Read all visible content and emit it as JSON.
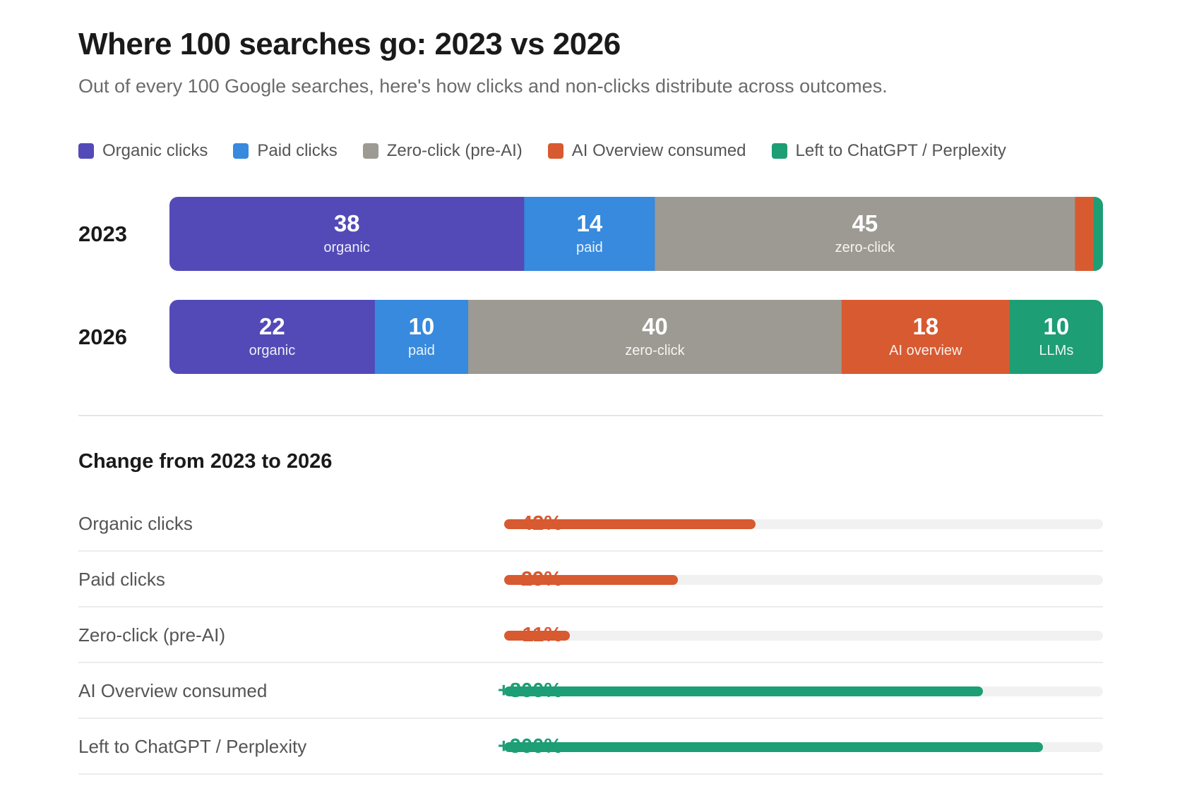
{
  "header": {
    "title": "Where 100 searches go: 2023 vs 2026",
    "subtitle": "Out of every 100 Google searches, here's how clicks and non-clicks distribute across outcomes."
  },
  "legend": [
    {
      "label": "Organic clicks",
      "color": "#534AB7"
    },
    {
      "label": "Paid clicks",
      "color": "#378ADD"
    },
    {
      "label": "Zero-click (pre-AI)",
      "color": "#9C9A92"
    },
    {
      "label": "AI Overview consumed",
      "color": "#D85A30"
    },
    {
      "label": "Left to ChatGPT / Perplexity",
      "color": "#1D9E75"
    }
  ],
  "chart_data": [
    {
      "type": "bar",
      "orientation": "horizontal-stacked",
      "categories": [
        "2023",
        "2026"
      ],
      "series": [
        {
          "name": "Organic clicks",
          "short_label": "organic",
          "color": "#534AB7",
          "values": [
            38,
            22
          ]
        },
        {
          "name": "Paid clicks",
          "short_label": "paid",
          "color": "#378ADD",
          "values": [
            14,
            10
          ]
        },
        {
          "name": "Zero-click (pre-AI)",
          "short_label": "zero-click",
          "color": "#9C9A92",
          "values": [
            45,
            40
          ]
        },
        {
          "name": "AI Overview consumed",
          "short_label": "AI overview",
          "color": "#D85A30",
          "values": [
            2,
            18
          ]
        },
        {
          "name": "Left to ChatGPT / Perplexity",
          "short_label": "LLMs",
          "color": "#1D9E75",
          "values": [
            1,
            10
          ]
        }
      ],
      "total": 100,
      "legend_position": "top"
    },
    {
      "type": "bar",
      "orientation": "horizontal",
      "title": "Change from 2023 to 2026",
      "categories": [
        "Organic clicks",
        "Paid clicks",
        "Zero-click (pre-AI)",
        "AI Overview consumed",
        "Left to ChatGPT / Perplexity"
      ],
      "values": [
        -42,
        -29,
        -11,
        800,
        900
      ],
      "labels": [
        "-42%",
        "-29%",
        "-11%",
        "+800%",
        "+900%"
      ],
      "bar_fill_fraction": [
        0.42,
        0.29,
        0.11,
        0.8,
        0.9
      ],
      "colors": {
        "negative": "#D85A30",
        "positive": "#1D9E75",
        "track": "#f1f1f1"
      }
    }
  ],
  "change": {
    "title": "Change from 2023 to 2026",
    "rows": [
      {
        "label": "Organic clicks",
        "pct": "-42%",
        "fraction": 0.42,
        "color": "#D85A30"
      },
      {
        "label": "Paid clicks",
        "pct": "-29%",
        "fraction": 0.29,
        "color": "#D85A30"
      },
      {
        "label": "Zero-click (pre-AI)",
        "pct": "-11%",
        "fraction": 0.11,
        "color": "#D85A30"
      },
      {
        "label": "AI Overview consumed",
        "pct": "+800%",
        "fraction": 0.8,
        "color": "#1D9E75"
      },
      {
        "label": "Left to ChatGPT / Perplexity",
        "pct": "+900%",
        "fraction": 0.9,
        "color": "#1D9E75"
      }
    ]
  }
}
